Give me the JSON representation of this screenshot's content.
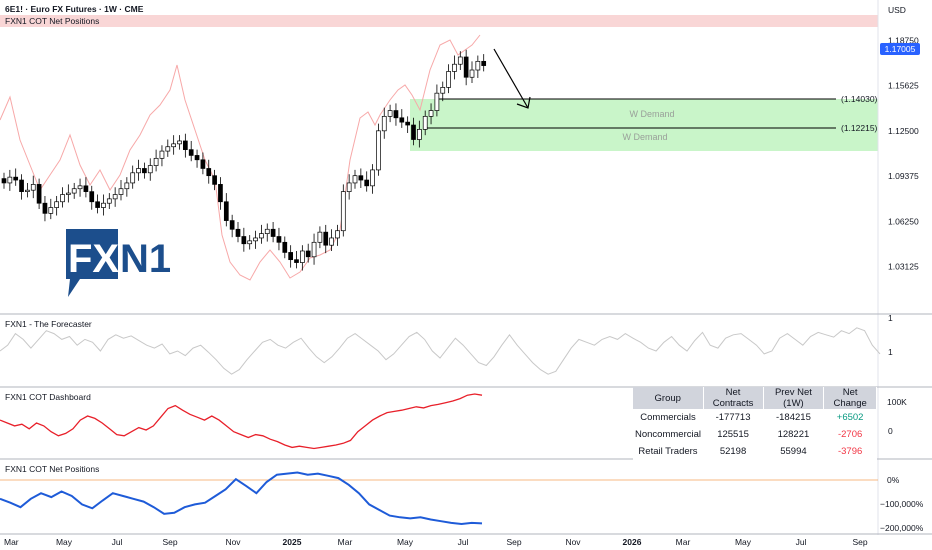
{
  "header": {
    "title": "6E1! · Euro FX Futures · 1W · CME",
    "overlay_label": "FXN1 COT Net Positions",
    "currency": "USD"
  },
  "logo": {
    "text_fx": "FX",
    "text_n1": "N1"
  },
  "annotations": {
    "demand_label_1": "W Demand",
    "demand_label_2": "W Demand",
    "level_1": "(1.14030)",
    "level_2": "(1.12215)",
    "last_price": "1.17005",
    "last_price_color": "#2962ff"
  },
  "panels": {
    "forecaster_title": "FXN1 - The Forecaster",
    "forecaster_scale_top": "1",
    "forecaster_scale_mid": "1",
    "dashboard_title": "FXN1 COT Dashboard",
    "dashboard_scale_top": "100K",
    "dashboard_scale_zero": "0",
    "net_title": "FXN1 COT Net Positions",
    "net_scale": [
      "0%",
      "−100,000%",
      "−200,000%"
    ]
  },
  "table": {
    "headers": [
      "Group",
      "Net Contracts",
      "Prev Net (1W)",
      "Net Change"
    ],
    "rows": [
      [
        "Commercials",
        "-177713",
        "-184215",
        "+6502"
      ],
      [
        "Noncommercial",
        "125515",
        "128221",
        "-2706"
      ],
      [
        "Retail Traders",
        "52198",
        "55994",
        "-3796"
      ]
    ]
  },
  "colors": {
    "up": "#ffffff",
    "down": "#000000",
    "overlay_line": "#f7a8a8",
    "dashboard_line": "#e8202a",
    "net_line": "#1e5bd8",
    "forecaster_line": "#c8c8c8",
    "demand_zone": "#c9f5c9",
    "top_zone": "#f9d6d6"
  },
  "chart_data": {
    "type": "candlestick",
    "title": "6E1! · Euro FX Futures · 1W · CME",
    "price_axis": {
      "ticks": [
        "1.18750",
        "1.15625",
        "1.12500",
        "1.09375",
        "1.06250",
        "1.03125"
      ],
      "tick_values": [
        1.1875,
        1.15625,
        1.125,
        1.09375,
        1.0625,
        1.03125
      ],
      "range": [
        1.004,
        1.205
      ]
    },
    "time_axis": {
      "labels": [
        "Mar",
        "May",
        "Jul",
        "Sep",
        "Nov",
        "2025",
        "Mar",
        "May",
        "Jul",
        "Sep",
        "Nov",
        "2026",
        "Mar",
        "May",
        "Jul",
        "Sep"
      ],
      "bold": [
        "2025",
        "2026"
      ]
    },
    "closes": [
      1.089,
      1.093,
      1.091,
      1.083,
      1.084,
      1.088,
      1.075,
      1.068,
      1.072,
      1.076,
      1.081,
      1.082,
      1.085,
      1.087,
      1.083,
      1.076,
      1.072,
      1.075,
      1.078,
      1.081,
      1.085,
      1.089,
      1.096,
      1.099,
      1.096,
      1.101,
      1.106,
      1.111,
      1.114,
      1.116,
      1.118,
      1.112,
      1.108,
      1.105,
      1.099,
      1.094,
      1.088,
      1.076,
      1.063,
      1.057,
      1.052,
      1.047,
      1.049,
      1.051,
      1.054,
      1.057,
      1.052,
      1.048,
      1.041,
      1.036,
      1.034,
      1.042,
      1.038,
      1.048,
      1.055,
      1.046,
      1.051,
      1.056,
      1.083,
      1.089,
      1.094,
      1.091,
      1.087,
      1.098,
      1.125,
      1.135,
      1.139,
      1.134,
      1.131,
      1.129,
      1.119,
      1.126,
      1.135,
      1.139,
      1.151,
      1.155,
      1.166,
      1.171,
      1.176,
      1.162,
      1.167,
      1.173,
      1.17005
    ],
    "demand_zone": [
      1.112,
      1.1475
    ],
    "levels": [
      1.1403,
      1.12215
    ],
    "forecaster_series": [
      0.5,
      0.6,
      0.8,
      0.7,
      0.55,
      0.7,
      0.85,
      0.8,
      0.7,
      0.75,
      0.6,
      0.7,
      0.65,
      0.5,
      0.7,
      0.78,
      0.72,
      0.76,
      0.68,
      0.6,
      0.55,
      0.62,
      0.45,
      0.5,
      0.42,
      0.55,
      0.6,
      0.48,
      0.35,
      0.2,
      0.1,
      0.18,
      0.35,
      0.5,
      0.65,
      0.7,
      0.6,
      0.55,
      0.65,
      0.72,
      0.55,
      0.4,
      0.3,
      0.4,
      0.55,
      0.72,
      0.8,
      0.7,
      0.6,
      0.5,
      0.35,
      0.45,
      0.6,
      0.75,
      0.82,
      0.7,
      0.5,
      0.38,
      0.55,
      0.72,
      0.6,
      0.45,
      0.3,
      0.25,
      0.4,
      0.6,
      0.78,
      0.6,
      0.45,
      0.3,
      0.18,
      0.1,
      0.15,
      0.35,
      0.55,
      0.7,
      0.65,
      0.6,
      0.7,
      0.75,
      0.7,
      0.8,
      0.72,
      0.65,
      0.55,
      0.5,
      0.65,
      0.75,
      0.6,
      0.5,
      0.68,
      0.82,
      0.6,
      0.55,
      0.72,
      0.78,
      0.8,
      0.7,
      0.6,
      0.45,
      0.5,
      0.72,
      0.8,
      0.7,
      0.6,
      0.75,
      0.82,
      0.78,
      0.74,
      0.85,
      0.8,
      0.9,
      0.85,
      0.6,
      0.45
    ],
    "dashboard_series": [
      0.55,
      0.5,
      0.45,
      0.48,
      0.4,
      0.5,
      0.45,
      0.35,
      0.28,
      0.32,
      0.4,
      0.55,
      0.62,
      0.58,
      0.5,
      0.4,
      0.3,
      0.28,
      0.35,
      0.42,
      0.38,
      0.45,
      0.6,
      0.75,
      0.8,
      0.72,
      0.65,
      0.6,
      0.55,
      0.62,
      0.55,
      0.45,
      0.35,
      0.3,
      0.25,
      0.3,
      0.28,
      0.22,
      0.18,
      0.12,
      0.08,
      0.1,
      0.08,
      0.06,
      0.08,
      0.1,
      0.12,
      0.15,
      0.2,
      0.35,
      0.45,
      0.55,
      0.62,
      0.68,
      0.7,
      0.72,
      0.75,
      0.78,
      0.76,
      0.8,
      0.82,
      0.85,
      0.88,
      0.92,
      0.98,
      1.0,
      0.98
    ],
    "net_series": [
      0.45,
      0.38,
      0.3,
      0.45,
      0.55,
      0.48,
      0.58,
      0.5,
      0.35,
      0.28,
      0.42,
      0.55,
      0.5,
      0.45,
      0.4,
      0.3,
      0.18,
      0.2,
      0.3,
      0.35,
      0.38,
      0.5,
      0.62,
      0.8,
      0.68,
      0.55,
      0.75,
      0.88,
      0.9,
      0.92,
      0.88,
      0.9,
      0.86,
      0.82,
      0.7,
      0.55,
      0.35,
      0.25,
      0.15,
      0.12,
      0.1,
      0.12,
      0.08,
      0.05,
      0.02,
      0.0,
      0.02,
      0.01
    ],
    "dashboard_range": [
      -1,
      1
    ],
    "net_scale_ticks": [
      "0%",
      "−100,000%",
      "−200,000%"
    ]
  }
}
